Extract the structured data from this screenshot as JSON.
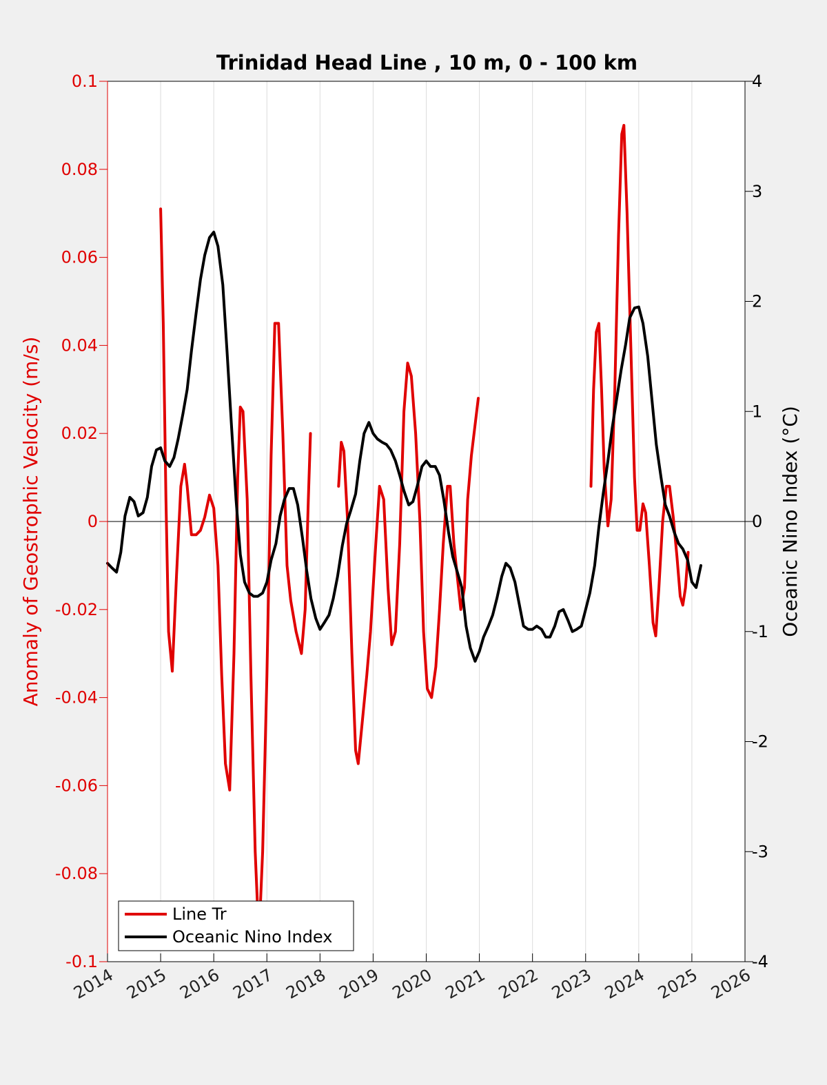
{
  "colors": {
    "left_axis": "#e00000",
    "right_axis": "#000000",
    "line_tr": "#e00000",
    "oni": "#000000",
    "background": "#f0f0f0",
    "plot_area": "#ffffff",
    "grid": "#dcdcdc"
  },
  "chart_data": {
    "type": "line",
    "title": "Trinidad Head Line , 10 m, 0 - 100 km",
    "xlabel": "",
    "ylabel_left": "Anomaly of Geostrophic Velocity (m/s)",
    "ylabel_right": "Oceanic Nino Index (°C)",
    "xlim": [
      2014,
      2026
    ],
    "ylim_left": [
      -0.1,
      0.1
    ],
    "ylim_right": [
      -4,
      4
    ],
    "x_ticks": [
      2014,
      2015,
      2016,
      2017,
      2018,
      2019,
      2020,
      2021,
      2022,
      2023,
      2024,
      2025,
      2026
    ],
    "x_tick_labels": [
      "2014",
      "2015",
      "2016",
      "2017",
      "2018",
      "2019",
      "2020",
      "2021",
      "2022",
      "2023",
      "2024",
      "2025",
      "2026"
    ],
    "y_left_ticks": [
      -0.1,
      -0.08,
      -0.06,
      -0.04,
      -0.02,
      0,
      0.02,
      0.04,
      0.06,
      0.08,
      0.1
    ],
    "y_left_tick_labels": [
      "-0.1",
      "-0.08",
      "-0.06",
      "-0.04",
      "-0.02",
      "0",
      "0.02",
      "0.04",
      "0.06",
      "0.08",
      "0.1"
    ],
    "y_right_ticks": [
      -4,
      -3,
      -2,
      -1,
      0,
      1,
      2,
      3,
      4
    ],
    "y_right_tick_labels": [
      "-4",
      "-3",
      "-2",
      "-1",
      "0",
      "1",
      "2",
      "3",
      "4"
    ],
    "grid": "vertical",
    "legend_position": "bottom-left",
    "series": [
      {
        "name": "Line Tr",
        "axis": "left",
        "segments": [
          [
            [
              2015.0,
              0.071
            ],
            [
              2015.05,
              0.045
            ],
            [
              2015.1,
              0.005
            ],
            [
              2015.15,
              -0.025
            ],
            [
              2015.22,
              -0.034
            ],
            [
              2015.3,
              -0.012
            ],
            [
              2015.38,
              0.008
            ],
            [
              2015.45,
              0.013
            ],
            [
              2015.5,
              0.008
            ],
            [
              2015.58,
              -0.003
            ],
            [
              2015.67,
              -0.003
            ],
            [
              2015.75,
              -0.002
            ],
            [
              2015.83,
              0.001
            ],
            [
              2015.92,
              0.006
            ],
            [
              2016.0,
              0.003
            ],
            [
              2016.08,
              -0.01
            ],
            [
              2016.15,
              -0.035
            ],
            [
              2016.22,
              -0.055
            ],
            [
              2016.3,
              -0.061
            ],
            [
              2016.38,
              -0.03
            ],
            [
              2016.45,
              0.01
            ],
            [
              2016.5,
              0.026
            ],
            [
              2016.55,
              0.025
            ],
            [
              2016.63,
              0.005
            ],
            [
              2016.7,
              -0.035
            ],
            [
              2016.78,
              -0.075
            ],
            [
              2016.85,
              -0.095
            ],
            [
              2016.92,
              -0.075
            ],
            [
              2017.0,
              -0.035
            ],
            [
              2017.08,
              0.015
            ],
            [
              2017.15,
              0.045
            ],
            [
              2017.22,
              0.045
            ],
            [
              2017.3,
              0.02
            ],
            [
              2017.38,
              -0.01
            ],
            [
              2017.45,
              -0.018
            ],
            [
              2017.55,
              -0.025
            ],
            [
              2017.65,
              -0.03
            ],
            [
              2017.72,
              -0.02
            ],
            [
              2017.78,
              0.005
            ],
            [
              2017.82,
              0.02
            ]
          ],
          [
            [
              2018.35,
              0.008
            ],
            [
              2018.4,
              0.018
            ],
            [
              2018.45,
              0.016
            ],
            [
              2018.52,
              0.0
            ],
            [
              2018.6,
              -0.03
            ],
            [
              2018.67,
              -0.052
            ],
            [
              2018.72,
              -0.055
            ],
            [
              2018.8,
              -0.045
            ],
            [
              2018.88,
              -0.035
            ],
            [
              2018.95,
              -0.025
            ],
            [
              2019.05,
              -0.005
            ],
            [
              2019.12,
              0.008
            ],
            [
              2019.2,
              0.005
            ],
            [
              2019.28,
              -0.015
            ],
            [
              2019.35,
              -0.028
            ],
            [
              2019.42,
              -0.025
            ],
            [
              2019.5,
              -0.005
            ],
            [
              2019.58,
              0.025
            ],
            [
              2019.65,
              0.036
            ],
            [
              2019.72,
              0.033
            ],
            [
              2019.8,
              0.02
            ],
            [
              2019.88,
              0.0
            ],
            [
              2019.95,
              -0.025
            ],
            [
              2020.02,
              -0.038
            ],
            [
              2020.1,
              -0.04
            ],
            [
              2020.18,
              -0.033
            ],
            [
              2020.25,
              -0.02
            ],
            [
              2020.32,
              -0.005
            ],
            [
              2020.4,
              0.008
            ],
            [
              2020.45,
              0.008
            ],
            [
              2020.52,
              -0.005
            ],
            [
              2020.58,
              -0.012
            ],
            [
              2020.65,
              -0.02
            ],
            [
              2020.72,
              -0.015
            ],
            [
              2020.78,
              0.005
            ],
            [
              2020.85,
              0.015
            ],
            [
              2020.92,
              0.022
            ],
            [
              2020.98,
              0.028
            ]
          ],
          [
            [
              2023.1,
              0.008
            ],
            [
              2023.15,
              0.03
            ],
            [
              2023.2,
              0.043
            ],
            [
              2023.25,
              0.045
            ],
            [
              2023.3,
              0.03
            ],
            [
              2023.35,
              0.012
            ],
            [
              2023.42,
              -0.001
            ],
            [
              2023.48,
              0.005
            ],
            [
              2023.55,
              0.03
            ],
            [
              2023.62,
              0.065
            ],
            [
              2023.68,
              0.088
            ],
            [
              2023.72,
              0.09
            ],
            [
              2023.78,
              0.07
            ],
            [
              2023.85,
              0.04
            ],
            [
              2023.92,
              0.01
            ],
            [
              2023.97,
              -0.002
            ],
            [
              2024.02,
              -0.002
            ],
            [
              2024.08,
              0.004
            ],
            [
              2024.13,
              0.002
            ],
            [
              2024.2,
              -0.01
            ],
            [
              2024.27,
              -0.023
            ],
            [
              2024.32,
              -0.026
            ],
            [
              2024.38,
              -0.015
            ],
            [
              2024.45,
              0.0
            ],
            [
              2024.52,
              0.008
            ],
            [
              2024.58,
              0.008
            ],
            [
              2024.65,
              0.001
            ],
            [
              2024.72,
              -0.008
            ],
            [
              2024.78,
              -0.017
            ],
            [
              2024.83,
              -0.019
            ],
            [
              2024.88,
              -0.015
            ],
            [
              2024.93,
              -0.007
            ]
          ]
        ]
      },
      {
        "name": "Oceanic Nino Index",
        "axis": "right",
        "points": [
          [
            2014.0,
            -0.38
          ],
          [
            2014.08,
            -0.42
          ],
          [
            2014.17,
            -0.46
          ],
          [
            2014.25,
            -0.28
          ],
          [
            2014.33,
            0.05
          ],
          [
            2014.42,
            0.22
          ],
          [
            2014.5,
            0.18
          ],
          [
            2014.58,
            0.05
          ],
          [
            2014.67,
            0.08
          ],
          [
            2014.75,
            0.22
          ],
          [
            2014.83,
            0.5
          ],
          [
            2014.92,
            0.65
          ],
          [
            2015.0,
            0.67
          ],
          [
            2015.08,
            0.55
          ],
          [
            2015.17,
            0.5
          ],
          [
            2015.25,
            0.58
          ],
          [
            2015.33,
            0.75
          ],
          [
            2015.42,
            0.98
          ],
          [
            2015.5,
            1.2
          ],
          [
            2015.58,
            1.55
          ],
          [
            2015.67,
            1.9
          ],
          [
            2015.75,
            2.2
          ],
          [
            2015.83,
            2.42
          ],
          [
            2015.92,
            2.58
          ],
          [
            2016.0,
            2.63
          ],
          [
            2016.08,
            2.5
          ],
          [
            2016.17,
            2.15
          ],
          [
            2016.25,
            1.55
          ],
          [
            2016.33,
            0.9
          ],
          [
            2016.42,
            0.2
          ],
          [
            2016.5,
            -0.3
          ],
          [
            2016.58,
            -0.55
          ],
          [
            2016.67,
            -0.65
          ],
          [
            2016.75,
            -0.68
          ],
          [
            2016.83,
            -0.68
          ],
          [
            2016.92,
            -0.65
          ],
          [
            2017.0,
            -0.55
          ],
          [
            2017.08,
            -0.35
          ],
          [
            2017.17,
            -0.2
          ],
          [
            2017.25,
            0.05
          ],
          [
            2017.33,
            0.2
          ],
          [
            2017.42,
            0.3
          ],
          [
            2017.5,
            0.3
          ],
          [
            2017.58,
            0.15
          ],
          [
            2017.67,
            -0.15
          ],
          [
            2017.75,
            -0.45
          ],
          [
            2017.83,
            -0.7
          ],
          [
            2017.92,
            -0.88
          ],
          [
            2018.0,
            -0.98
          ],
          [
            2018.08,
            -0.92
          ],
          [
            2018.17,
            -0.85
          ],
          [
            2018.25,
            -0.7
          ],
          [
            2018.33,
            -0.5
          ],
          [
            2018.42,
            -0.22
          ],
          [
            2018.5,
            -0.02
          ],
          [
            2018.58,
            0.1
          ],
          [
            2018.67,
            0.25
          ],
          [
            2018.75,
            0.55
          ],
          [
            2018.83,
            0.8
          ],
          [
            2018.92,
            0.9
          ],
          [
            2019.0,
            0.8
          ],
          [
            2019.08,
            0.75
          ],
          [
            2019.17,
            0.72
          ],
          [
            2019.25,
            0.7
          ],
          [
            2019.33,
            0.65
          ],
          [
            2019.42,
            0.55
          ],
          [
            2019.5,
            0.42
          ],
          [
            2019.58,
            0.28
          ],
          [
            2019.67,
            0.15
          ],
          [
            2019.75,
            0.18
          ],
          [
            2019.83,
            0.32
          ],
          [
            2019.92,
            0.5
          ],
          [
            2020.0,
            0.55
          ],
          [
            2020.08,
            0.5
          ],
          [
            2020.17,
            0.5
          ],
          [
            2020.25,
            0.42
          ],
          [
            2020.33,
            0.2
          ],
          [
            2020.42,
            -0.1
          ],
          [
            2020.5,
            -0.32
          ],
          [
            2020.58,
            -0.45
          ],
          [
            2020.67,
            -0.6
          ],
          [
            2020.75,
            -0.95
          ],
          [
            2020.83,
            -1.15
          ],
          [
            2020.92,
            -1.27
          ],
          [
            2021.0,
            -1.18
          ],
          [
            2021.08,
            -1.05
          ],
          [
            2021.17,
            -0.95
          ],
          [
            2021.25,
            -0.85
          ],
          [
            2021.33,
            -0.7
          ],
          [
            2021.42,
            -0.5
          ],
          [
            2021.5,
            -0.38
          ],
          [
            2021.58,
            -0.42
          ],
          [
            2021.67,
            -0.55
          ],
          [
            2021.75,
            -0.75
          ],
          [
            2021.83,
            -0.95
          ],
          [
            2021.92,
            -0.98
          ],
          [
            2022.0,
            -0.98
          ],
          [
            2022.08,
            -0.95
          ],
          [
            2022.17,
            -0.98
          ],
          [
            2022.25,
            -1.05
          ],
          [
            2022.33,
            -1.05
          ],
          [
            2022.42,
            -0.95
          ],
          [
            2022.5,
            -0.82
          ],
          [
            2022.58,
            -0.8
          ],
          [
            2022.67,
            -0.9
          ],
          [
            2022.75,
            -1.0
          ],
          [
            2022.83,
            -0.98
          ],
          [
            2022.92,
            -0.95
          ],
          [
            2023.0,
            -0.8
          ],
          [
            2023.08,
            -0.65
          ],
          [
            2023.17,
            -0.4
          ],
          [
            2023.25,
            -0.05
          ],
          [
            2023.33,
            0.25
          ],
          [
            2023.42,
            0.55
          ],
          [
            2023.5,
            0.85
          ],
          [
            2023.58,
            1.1
          ],
          [
            2023.67,
            1.38
          ],
          [
            2023.75,
            1.6
          ],
          [
            2023.83,
            1.85
          ],
          [
            2023.92,
            1.94
          ],
          [
            2024.0,
            1.95
          ],
          [
            2024.08,
            1.8
          ],
          [
            2024.17,
            1.5
          ],
          [
            2024.25,
            1.1
          ],
          [
            2024.33,
            0.7
          ],
          [
            2024.42,
            0.4
          ],
          [
            2024.5,
            0.15
          ],
          [
            2024.58,
            0.05
          ],
          [
            2024.67,
            -0.1
          ],
          [
            2024.75,
            -0.2
          ],
          [
            2024.83,
            -0.25
          ],
          [
            2024.92,
            -0.35
          ],
          [
            2025.0,
            -0.55
          ],
          [
            2025.08,
            -0.6
          ],
          [
            2025.17,
            -0.4
          ]
        ]
      }
    ]
  }
}
